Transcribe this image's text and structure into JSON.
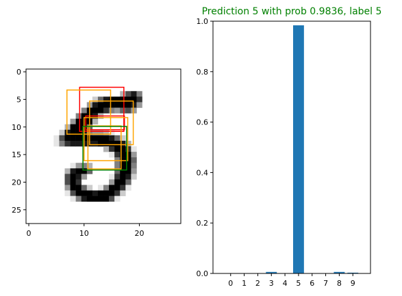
{
  "title": "Prediction 5 with prob 0.9836, label 5",
  "title_color": "#008000",
  "bar_color": "#1f77b4",
  "chart_data": [
    {
      "type": "heatmap",
      "subject": "grayscale digit image with overlaid attention boxes",
      "colormap": "gray_r",
      "xlim": [
        -0.5,
        27.5
      ],
      "ylim": [
        27.5,
        -0.5
      ],
      "x_ticks": [
        0,
        10,
        20
      ],
      "y_ticks": [
        0,
        5,
        10,
        15,
        20,
        25
      ],
      "grid": false,
      "shape": [
        28,
        28
      ],
      "pixels": [
        [
          0,
          0,
          0,
          0,
          0,
          0,
          0,
          0,
          0,
          0,
          0,
          0,
          0,
          0,
          0,
          0,
          0,
          0,
          0,
          0,
          0,
          0,
          0,
          0,
          0,
          0,
          0,
          0
        ],
        [
          0,
          0,
          0,
          0,
          0,
          0,
          0,
          0,
          0,
          0,
          0,
          0,
          0,
          0,
          0,
          0,
          0,
          0,
          0,
          0,
          0,
          0,
          0,
          0,
          0,
          0,
          0,
          0
        ],
        [
          0,
          0,
          0,
          0,
          0,
          0,
          0,
          0,
          0,
          0,
          0,
          0,
          0,
          0,
          0,
          0,
          0,
          0,
          0,
          0,
          0,
          0,
          0,
          0,
          0,
          0,
          0,
          0
        ],
        [
          0,
          0,
          0,
          0,
          0,
          0,
          0,
          0,
          0,
          0,
          0,
          0,
          0,
          0,
          0,
          0,
          0,
          0,
          0,
          0,
          0,
          0,
          0,
          0,
          0,
          0,
          0,
          0
        ],
        [
          0,
          0,
          0,
          0,
          0,
          0,
          0,
          0,
          0,
          0,
          0,
          0,
          0,
          0,
          0,
          0,
          0,
          0.3,
          0.7,
          0.9,
          0.5,
          0,
          0,
          0,
          0,
          0,
          0,
          0
        ],
        [
          0,
          0,
          0,
          0,
          0,
          0,
          0,
          0,
          0,
          0,
          0,
          0,
          0.2,
          0.6,
          0.9,
          1,
          1,
          1,
          1,
          1,
          0.8,
          0,
          0,
          0,
          0,
          0,
          0,
          0
        ],
        [
          0,
          0,
          0,
          0,
          0,
          0,
          0,
          0,
          0,
          0,
          0,
          0.4,
          0.9,
          1,
          1,
          1,
          1,
          1,
          1,
          0.9,
          0.4,
          0,
          0,
          0,
          0,
          0,
          0,
          0
        ],
        [
          0,
          0,
          0,
          0,
          0,
          0,
          0,
          0,
          0,
          0,
          0.5,
          1,
          1,
          1,
          0.8,
          0.5,
          0.4,
          0.6,
          0.7,
          0.4,
          0,
          0,
          0,
          0,
          0,
          0,
          0,
          0
        ],
        [
          0,
          0,
          0,
          0,
          0,
          0,
          0,
          0,
          0,
          0.5,
          1,
          1,
          0.9,
          0.3,
          0,
          0,
          0,
          0,
          0,
          0,
          0,
          0,
          0,
          0,
          0,
          0,
          0,
          0
        ],
        [
          0,
          0,
          0,
          0,
          0,
          0,
          0,
          0,
          0.4,
          1,
          1,
          1,
          0.3,
          0,
          0,
          0,
          0,
          0,
          0,
          0,
          0,
          0,
          0,
          0,
          0,
          0,
          0,
          0
        ],
        [
          0,
          0,
          0,
          0,
          0,
          0,
          0,
          0.3,
          1,
          1,
          1,
          0.6,
          0,
          0,
          0,
          0,
          0,
          0,
          0,
          0,
          0,
          0,
          0,
          0,
          0,
          0,
          0,
          0
        ],
        [
          0,
          0,
          0,
          0,
          0,
          0,
          0.2,
          0.9,
          1,
          1,
          0.9,
          0.5,
          0.4,
          0.4,
          0.3,
          0.1,
          0,
          0,
          0,
          0,
          0,
          0,
          0,
          0,
          0,
          0,
          0,
          0
        ],
        [
          0,
          0,
          0,
          0,
          0,
          0.1,
          0.7,
          1,
          1,
          1,
          1,
          1,
          1,
          1,
          1,
          0.9,
          0.6,
          0.2,
          0,
          0,
          0,
          0,
          0,
          0,
          0,
          0,
          0,
          0
        ],
        [
          0,
          0,
          0,
          0,
          0,
          0.1,
          0.5,
          0.8,
          0.9,
          0.9,
          0.9,
          0.9,
          0.9,
          1,
          1,
          1,
          1,
          0.9,
          0.3,
          0,
          0,
          0,
          0,
          0,
          0,
          0,
          0,
          0
        ],
        [
          0,
          0,
          0,
          0,
          0,
          0,
          0,
          0,
          0,
          0,
          0,
          0,
          0,
          0,
          0.3,
          0.8,
          1,
          1,
          0.8,
          0.1,
          0,
          0,
          0,
          0,
          0,
          0,
          0,
          0
        ],
        [
          0,
          0,
          0,
          0,
          0,
          0,
          0,
          0,
          0,
          0,
          0,
          0,
          0,
          0,
          0,
          0.1,
          0.8,
          1,
          1,
          0.4,
          0,
          0,
          0,
          0,
          0,
          0,
          0,
          0
        ],
        [
          0,
          0,
          0,
          0,
          0,
          0,
          0,
          0,
          0,
          0,
          0,
          0,
          0,
          0,
          0,
          0,
          0.5,
          1,
          1,
          0.6,
          0,
          0,
          0,
          0,
          0,
          0,
          0,
          0
        ],
        [
          0,
          0,
          0,
          0,
          0,
          0,
          0,
          0,
          0.1,
          0.4,
          0.5,
          0.3,
          0,
          0,
          0,
          0,
          0.5,
          1,
          1,
          0.5,
          0,
          0,
          0,
          0,
          0,
          0,
          0,
          0
        ],
        [
          0,
          0,
          0,
          0,
          0,
          0,
          0,
          0.3,
          0.9,
          1,
          1,
          0.6,
          0,
          0,
          0,
          0,
          0.6,
          1,
          1,
          0.4,
          0,
          0,
          0,
          0,
          0,
          0,
          0,
          0
        ],
        [
          0,
          0,
          0,
          0,
          0,
          0,
          0,
          0.7,
          1,
          0.9,
          0.4,
          0,
          0,
          0,
          0,
          0.1,
          0.8,
          1,
          0.9,
          0.2,
          0,
          0,
          0,
          0,
          0,
          0,
          0,
          0
        ],
        [
          0,
          0,
          0,
          0,
          0,
          0,
          0,
          0.7,
          1,
          0.8,
          0,
          0,
          0,
          0,
          0,
          0.4,
          1,
          1,
          0.6,
          0,
          0,
          0,
          0,
          0,
          0,
          0,
          0,
          0
        ],
        [
          0,
          0,
          0,
          0,
          0,
          0,
          0,
          0.4,
          1,
          1,
          0.6,
          0.2,
          0,
          0.1,
          0.5,
          1,
          1,
          0.8,
          0.1,
          0,
          0,
          0,
          0,
          0,
          0,
          0,
          0,
          0
        ],
        [
          0,
          0,
          0,
          0,
          0,
          0,
          0,
          0.1,
          0.7,
          1,
          1,
          1,
          0.9,
          1,
          1,
          1,
          0.8,
          0.2,
          0,
          0,
          0,
          0,
          0,
          0,
          0,
          0,
          0,
          0
        ],
        [
          0,
          0,
          0,
          0,
          0,
          0,
          0,
          0,
          0.1,
          0.5,
          0.9,
          1,
          1,
          1,
          1,
          0.7,
          0.1,
          0,
          0,
          0,
          0,
          0,
          0,
          0,
          0,
          0,
          0,
          0
        ],
        [
          0,
          0,
          0,
          0,
          0,
          0,
          0,
          0,
          0,
          0,
          0,
          0,
          0,
          0,
          0,
          0,
          0,
          0,
          0,
          0,
          0,
          0,
          0,
          0,
          0,
          0,
          0,
          0
        ],
        [
          0,
          0,
          0,
          0,
          0,
          0,
          0,
          0,
          0,
          0,
          0,
          0,
          0,
          0,
          0,
          0,
          0,
          0,
          0,
          0,
          0,
          0,
          0,
          0,
          0,
          0,
          0,
          0
        ],
        [
          0,
          0,
          0,
          0,
          0,
          0,
          0,
          0,
          0,
          0,
          0,
          0,
          0,
          0,
          0,
          0,
          0,
          0,
          0,
          0,
          0,
          0,
          0,
          0,
          0,
          0,
          0,
          0
        ],
        [
          0,
          0,
          0,
          0,
          0,
          0,
          0,
          0,
          0,
          0,
          0,
          0,
          0,
          0,
          0,
          0,
          0,
          0,
          0,
          0,
          0,
          0,
          0,
          0,
          0,
          0,
          0,
          0
        ]
      ],
      "boxes": [
        {
          "color": "#ff0000",
          "x0": 9.2,
          "y0": 2.8,
          "x1": 17.2,
          "y1": 10.8
        },
        {
          "color": "#ff0000",
          "x0": 10.3,
          "y0": 8.0,
          "x1": 17.3,
          "y1": 10.5
        },
        {
          "color": "#ffa500",
          "x0": 6.9,
          "y0": 3.3,
          "x1": 14.8,
          "y1": 11.3
        },
        {
          "color": "#ffa500",
          "x0": 11.0,
          "y0": 5.3,
          "x1": 18.9,
          "y1": 13.2
        },
        {
          "color": "#ffa500",
          "x0": 10.7,
          "y0": 9.8,
          "x1": 16.7,
          "y1": 17.6
        },
        {
          "color": "#ffa500",
          "x0": 10.0,
          "y0": 8.3,
          "x1": 17.9,
          "y1": 16.1
        },
        {
          "color": "#008000",
          "x0": 9.8,
          "y0": 9.9,
          "x1": 17.7,
          "y1": 17.8
        }
      ]
    },
    {
      "type": "bar",
      "categories": [
        "0",
        "1",
        "2",
        "3",
        "4",
        "5",
        "6",
        "7",
        "8",
        "9"
      ],
      "values": [
        0.0005,
        0.0005,
        0.0005,
        0.006,
        0.0005,
        0.9836,
        0.0005,
        0.0005,
        0.006,
        0.003
      ],
      "ylim": [
        0.0,
        1.0
      ],
      "y_ticks": [
        "0.0",
        "0.2",
        "0.4",
        "0.6",
        "0.8",
        "1.0"
      ],
      "grid": false
    }
  ]
}
